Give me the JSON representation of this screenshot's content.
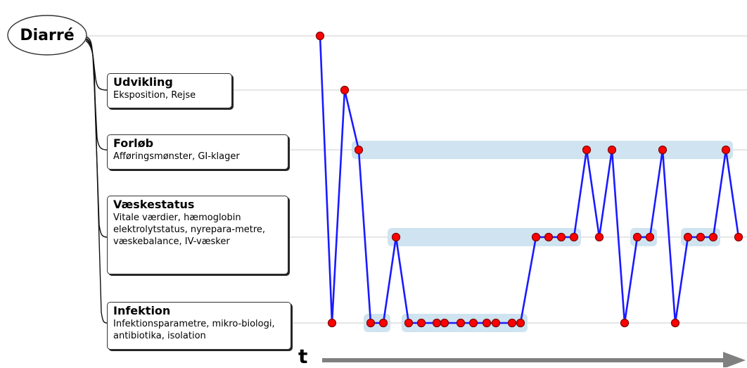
{
  "root": {
    "label": "Diarré"
  },
  "categories": [
    {
      "id": "udvikling",
      "title": "Udvikling",
      "subtitle": "Eksposition, Rejse"
    },
    {
      "id": "forlob",
      "title": "Forløb",
      "subtitle": "Afføringsmønster, GI-klager"
    },
    {
      "id": "vaeskestatus",
      "title": "Væskestatus",
      "subtitle": "Vitale værdier, hæmoglobin elektrolytstatus, nyrepara-metre, væskebalance, IV-væsker"
    },
    {
      "id": "infektion",
      "title": "Infektion",
      "subtitle": "Infektionsparametre, mikro-biologi, antibiotika, isolation"
    }
  ],
  "axis": {
    "time_label": "t"
  },
  "levels": [
    "Diarré",
    "Udvikling",
    "Forløb",
    "Væskestatus",
    "Infektion"
  ],
  "sequence": [
    {
      "t": 0,
      "level": 0
    },
    {
      "t": 1,
      "level": 4
    },
    {
      "t": 2,
      "level": 1
    },
    {
      "t": 3,
      "level": 2
    },
    {
      "t": 4,
      "level": 4
    },
    {
      "t": 5,
      "level": 4
    },
    {
      "t": 6,
      "level": 3
    },
    {
      "t": 7,
      "level": 4
    },
    {
      "t": 8,
      "level": 4
    },
    {
      "t": 9,
      "level": 4
    },
    {
      "t": 10,
      "level": 4
    },
    {
      "t": 11,
      "level": 4
    },
    {
      "t": 12,
      "level": 4
    },
    {
      "t": 13,
      "level": 4
    },
    {
      "t": 14,
      "level": 4
    },
    {
      "t": 15,
      "level": 4
    },
    {
      "t": 16,
      "level": 4
    },
    {
      "t": 17,
      "level": 3
    },
    {
      "t": 18,
      "level": 3
    },
    {
      "t": 19,
      "level": 3
    },
    {
      "t": 20,
      "level": 3
    },
    {
      "t": 21,
      "level": 2
    },
    {
      "t": 22,
      "level": 3
    },
    {
      "t": 23,
      "level": 2
    },
    {
      "t": 24,
      "level": 4
    },
    {
      "t": 25,
      "level": 3
    },
    {
      "t": 26,
      "level": 3
    },
    {
      "t": 27,
      "level": 2
    },
    {
      "t": 28,
      "level": 4
    },
    {
      "t": 29,
      "level": 3
    },
    {
      "t": 30,
      "level": 3
    },
    {
      "t": 31,
      "level": 3
    },
    {
      "t": 32,
      "level": 2
    },
    {
      "t": 33,
      "level": 3
    }
  ],
  "colors": {
    "line": "#1a1aff",
    "point": "#ff0000",
    "point_outline": "#7a0000",
    "band": "#cfe3f0",
    "guide": "#cccccc",
    "arrow": "#808080"
  }
}
